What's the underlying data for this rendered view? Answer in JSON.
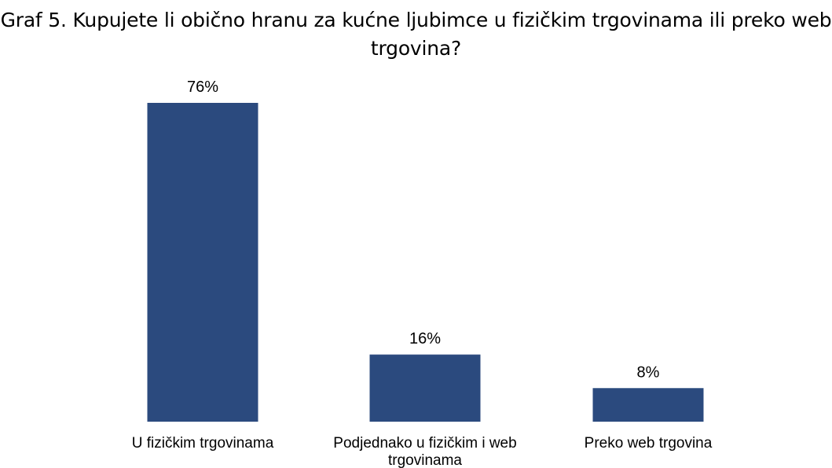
{
  "chart_data": {
    "type": "bar",
    "title": "Graf 5. Kupujete li obično hranu za kućne ljubimce u fizičkim trgovinama ili preko web trgovina?",
    "categories": [
      "U fizičkim trgovinama",
      "Podjednako u fizičkim i web trgovinama",
      "Preko web trgovina"
    ],
    "values": [
      76,
      16,
      8
    ],
    "value_labels": [
      "76%",
      "16%",
      "8%"
    ],
    "unit": "%",
    "ylim": [
      0,
      76
    ],
    "grid": false,
    "legend": "none",
    "bar_color": "#2b4a7e"
  }
}
